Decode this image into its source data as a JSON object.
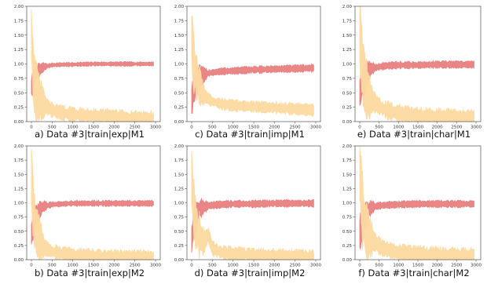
{
  "colors": {
    "accuracy": "#e88080",
    "loss": "#fdd9a0",
    "axis": "#333333",
    "background": "#ffffff"
  },
  "chart_data": [
    {
      "type": "line",
      "caption": "a) Data #3|train|exp|M1",
      "xlim": [
        0,
        3000
      ],
      "ylim": [
        0,
        2
      ],
      "xticks": [
        0,
        500,
        1000,
        1500,
        2000,
        2500,
        3000
      ],
      "yticks": [
        "0.00",
        "0.25",
        "0.50",
        "0.75",
        "1.00",
        "1.25",
        "1.50",
        "1.75",
        "2.00"
      ],
      "series": [
        {
          "color": "#e88080",
          "x": [
            0,
            50,
            100,
            200,
            300,
            500,
            750,
            1000,
            1500,
            2000,
            2500,
            2950
          ],
          "y": [
            0.6,
            0.72,
            0.82,
            0.9,
            0.95,
            0.98,
            0.99,
            0.99,
            1.0,
            1.0,
            1.0,
            1.0
          ],
          "band": 0.03
        },
        {
          "color": "#fdd9a0",
          "x": [
            0,
            20,
            50,
            100,
            200,
            300,
            500,
            750,
            1000,
            1500,
            2000,
            2500,
            2950
          ],
          "y": [
            1.55,
            1.2,
            0.75,
            0.55,
            0.4,
            0.3,
            0.2,
            0.15,
            0.12,
            0.1,
            0.08,
            0.06,
            0.05
          ],
          "band": 0.1
        }
      ]
    },
    {
      "type": "line",
      "caption": "c) Data #3|train|imp|M1",
      "xlim": [
        0,
        3000
      ],
      "ylim": [
        0,
        2
      ],
      "xticks": [
        0,
        500,
        1000,
        1500,
        2000,
        2500,
        3000
      ],
      "yticks": [
        "0.00",
        "0.25",
        "0.50",
        "0.75",
        "1.00",
        "1.25",
        "1.50",
        "1.75",
        "2.00"
      ],
      "series": [
        {
          "color": "#e88080",
          "x": [
            0,
            50,
            100,
            200,
            400,
            700,
            1000,
            1500,
            2000,
            2500,
            2950
          ],
          "y": [
            0.35,
            0.55,
            0.68,
            0.78,
            0.84,
            0.87,
            0.88,
            0.9,
            0.91,
            0.92,
            0.93
          ],
          "band": 0.05
        },
        {
          "color": "#fdd9a0",
          "x": [
            0,
            50,
            100,
            200,
            300,
            500,
            750,
            1000,
            1500,
            2000,
            2500,
            2950
          ],
          "y": [
            1.5,
            1.0,
            0.8,
            0.6,
            0.45,
            0.35,
            0.3,
            0.28,
            0.26,
            0.24,
            0.22,
            0.2
          ],
          "band": 0.08
        }
      ]
    },
    {
      "type": "line",
      "caption": "e) Data #3|train|char|M1",
      "xlim": [
        0,
        3000
      ],
      "ylim": [
        0,
        2
      ],
      "xticks": [
        0,
        500,
        1000,
        1500,
        2000,
        2500,
        3000
      ],
      "yticks": [
        "0.00",
        "0.25",
        "0.50",
        "0.75",
        "1.00",
        "1.25",
        "1.50",
        "1.75",
        "2.00"
      ],
      "series": [
        {
          "color": "#e88080",
          "x": [
            0,
            50,
            100,
            200,
            300,
            500,
            700,
            1000,
            1500,
            2000,
            2500,
            2950
          ],
          "y": [
            0.5,
            0.62,
            0.72,
            0.85,
            0.92,
            0.95,
            0.97,
            0.98,
            0.98,
            0.99,
            0.99,
            0.99
          ],
          "band": 0.05
        },
        {
          "color": "#fdd9a0",
          "x": [
            0,
            30,
            80,
            150,
            250,
            400,
            600,
            1000,
            1500,
            2000,
            2500,
            2950
          ],
          "y": [
            1.6,
            1.3,
            0.85,
            0.6,
            0.42,
            0.32,
            0.22,
            0.14,
            0.1,
            0.08,
            0.06,
            0.05
          ],
          "band": 0.12
        }
      ]
    },
    {
      "type": "line",
      "caption": "b) Data #3|train|exp|M2",
      "xlim": [
        0,
        3000
      ],
      "ylim": [
        0,
        2
      ],
      "xticks": [
        0,
        500,
        1000,
        1500,
        2000,
        2500,
        3000
      ],
      "yticks": [
        "0.00",
        "0.25",
        "0.50",
        "0.75",
        "1.00",
        "1.25",
        "1.50",
        "1.75",
        "2.00"
      ],
      "series": [
        {
          "color": "#e88080",
          "x": [
            0,
            50,
            100,
            200,
            300,
            500,
            750,
            1000,
            1500,
            2000,
            2500,
            2950
          ],
          "y": [
            0.45,
            0.62,
            0.75,
            0.88,
            0.94,
            0.97,
            0.98,
            0.99,
            0.99,
            0.99,
            0.99,
            0.99
          ],
          "band": 0.04
        },
        {
          "color": "#fdd9a0",
          "x": [
            0,
            20,
            50,
            100,
            200,
            300,
            500,
            750,
            1000,
            1500,
            2000,
            2500,
            2950
          ],
          "y": [
            1.5,
            1.2,
            0.8,
            0.55,
            0.35,
            0.22,
            0.14,
            0.1,
            0.08,
            0.06,
            0.05,
            0.04,
            0.04
          ],
          "band": 0.1
        }
      ]
    },
    {
      "type": "line",
      "caption": "d) Data #3|train|imp|M2",
      "xlim": [
        0,
        3000
      ],
      "ylim": [
        0,
        2
      ],
      "xticks": [
        0,
        500,
        1000,
        1500,
        2000,
        2500,
        3000
      ],
      "yticks": [
        "0.00",
        "0.25",
        "0.50",
        "0.75",
        "1.00",
        "1.25",
        "1.50",
        "1.75",
        "2.00"
      ],
      "series": [
        {
          "color": "#e88080",
          "x": [
            0,
            50,
            100,
            200,
            400,
            700,
            1000,
            1500,
            2000,
            2500,
            2950
          ],
          "y": [
            0.35,
            0.62,
            0.78,
            0.9,
            0.95,
            0.97,
            0.98,
            0.98,
            0.99,
            0.99,
            0.99
          ],
          "band": 0.05
        },
        {
          "color": "#fdd9a0",
          "x": [
            0,
            50,
            100,
            200,
            300,
            400,
            500,
            750,
            1000,
            1500,
            2000,
            2500,
            2950
          ],
          "y": [
            1.45,
            0.9,
            0.6,
            0.4,
            0.3,
            0.45,
            0.2,
            0.12,
            0.1,
            0.08,
            0.06,
            0.05,
            0.04
          ],
          "band": 0.1
        }
      ]
    },
    {
      "type": "line",
      "caption": "f) Data #3|train|char|M2",
      "xlim": [
        0,
        3000
      ],
      "ylim": [
        0,
        2
      ],
      "xticks": [
        0,
        500,
        1000,
        1500,
        2000,
        2500,
        3000
      ],
      "yticks": [
        "0.00",
        "0.25",
        "0.50",
        "0.75",
        "1.00",
        "1.25",
        "1.50",
        "1.75",
        "2.00"
      ],
      "series": [
        {
          "color": "#e88080",
          "x": [
            0,
            50,
            100,
            200,
            300,
            500,
            700,
            1000,
            1500,
            2000,
            2500,
            2950
          ],
          "y": [
            0.45,
            0.6,
            0.72,
            0.85,
            0.92,
            0.95,
            0.96,
            0.97,
            0.98,
            0.98,
            0.98,
            0.98
          ],
          "band": 0.05
        },
        {
          "color": "#fdd9a0",
          "x": [
            0,
            30,
            80,
            150,
            250,
            400,
            600,
            1000,
            1500,
            2000,
            2500,
            2950
          ],
          "y": [
            1.6,
            1.3,
            0.8,
            0.55,
            0.4,
            0.3,
            0.2,
            0.12,
            0.09,
            0.07,
            0.06,
            0.05
          ],
          "band": 0.12
        }
      ]
    }
  ]
}
